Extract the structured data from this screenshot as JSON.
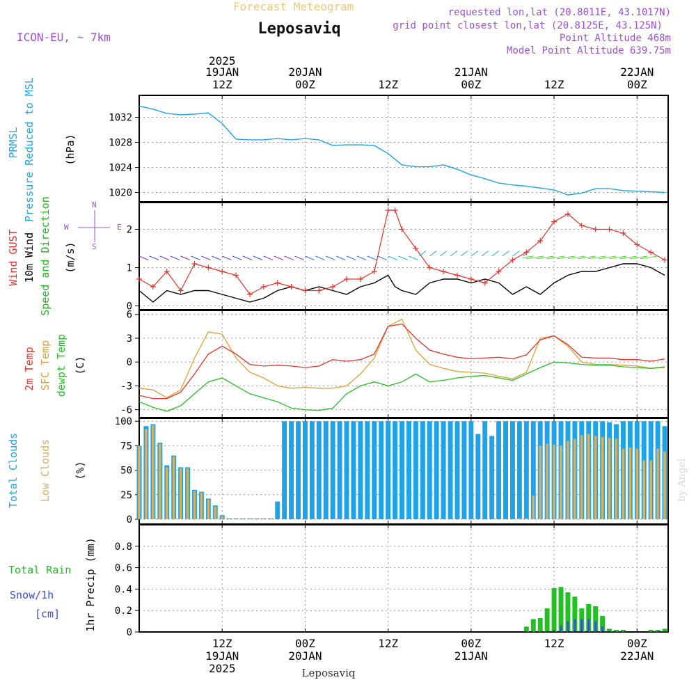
{
  "header": {
    "model": "ICON-EU, ~ 7km",
    "subtitle": "Forecast Meteogram",
    "title": "Leposaviq",
    "requested": "requested lon,lat (20.8011E, 43.1017N)",
    "grid_point": "grid point closest lon,lat (20.8125E, 43.125N)",
    "point_altitude": "Point Altitude 468m",
    "model_altitude": "Model Point Altitude 639.75m",
    "footer_place": "Leposaviq",
    "watermark": "by Angel"
  },
  "time_axis": {
    "top_labels": [
      {
        "l1": "2025",
        "l2": "19JAN",
        "l3": "12Z"
      },
      {
        "l1": "",
        "l2": "20JAN",
        "l3": "00Z"
      },
      {
        "l1": "",
        "l2": "",
        "l3": "12Z"
      },
      {
        "l1": "",
        "l2": "21JAN",
        "l3": "00Z"
      },
      {
        "l1": "",
        "l2": "",
        "l3": "12Z"
      },
      {
        "l1": "",
        "l2": "22JAN",
        "l3": "00Z"
      }
    ],
    "bottom_labels": [
      {
        "l1": "12Z",
        "l2": "19JAN",
        "l3": "2025"
      },
      {
        "l1": "00Z",
        "l2": "20JAN",
        "l3": ""
      },
      {
        "l1": "12Z",
        "l2": "",
        "l3": ""
      },
      {
        "l1": "00Z",
        "l2": "21JAN",
        "l3": ""
      },
      {
        "l1": "12Z",
        "l2": "",
        "l3": ""
      },
      {
        "l1": "00Z",
        "l2": "22JAN",
        "l3": ""
      }
    ],
    "tick_hours": [
      12,
      24,
      36,
      48,
      60,
      72
    ]
  },
  "panels": {
    "pressure": {
      "label_line1": "PRMSL",
      "label_line2": "Pressure Reduced to MSL",
      "unit": "(hPa)",
      "color": "#1fa3e8",
      "yticks": [
        1020,
        1024,
        1028,
        1032
      ]
    },
    "wind": {
      "gust_label": "Wind GUST",
      "wind_label": "10m Wind",
      "dir_label": "Speed and Direction",
      "unit": "(m/s)",
      "compass_n": "N",
      "compass_s": "S",
      "compass_w": "W",
      "compass_e": "E",
      "gust_color": "#e8302a",
      "wind_color": "#000000",
      "dir_color": "#22b422",
      "yticks": [
        0,
        1,
        2
      ]
    },
    "temperature": {
      "t2m_label": "2m Temp",
      "sfc_label": "SFC Temp",
      "dew_label": "dewpt Temp",
      "unit": "(C)",
      "t2m_color": "#e8302a",
      "sfc_color": "#e0a030",
      "dew_color": "#22c022",
      "yticks": [
        -6,
        -3,
        0,
        3,
        6
      ]
    },
    "clouds": {
      "total_label": "Total Clouds",
      "low_label": "Low Clouds",
      "unit": "(%)",
      "total_color": "#1fa3e8",
      "low_color": "#d8b060",
      "yticks": [
        0,
        25,
        50,
        75,
        100
      ]
    },
    "precip": {
      "rain_label": "Total  Rain",
      "snow_label": "Snow/1h",
      "snow_unit": "[cm]",
      "unit": "1hr Precip (mm)",
      "rain_color": "#22c022",
      "snow_color": "#3a4ae8",
      "yticks": [
        0,
        0.2,
        0.4,
        0.6,
        0.8
      ]
    }
  },
  "chart_data": [
    {
      "type": "line",
      "name": "pressure",
      "x_hours": [
        0,
        2,
        4,
        6,
        8,
        10,
        12,
        14,
        16,
        18,
        20,
        22,
        24,
        26,
        28,
        30,
        32,
        34,
        36,
        38,
        40,
        42,
        44,
        46,
        48,
        50,
        52,
        54,
        56,
        58,
        60,
        62,
        64,
        66,
        68,
        70,
        72,
        74,
        76
      ],
      "y": [
        1033.8,
        1033.3,
        1032.6,
        1032.4,
        1032.5,
        1032.7,
        1031.0,
        1028.5,
        1028.4,
        1028.4,
        1028.6,
        1028.4,
        1028.6,
        1028.4,
        1027.5,
        1027.6,
        1027.6,
        1027.5,
        1026.2,
        1024.4,
        1024.1,
        1024.1,
        1024.4,
        1023.7,
        1022.8,
        1022.2,
        1021.5,
        1021.2,
        1021.0,
        1020.7,
        1020.4,
        1019.6,
        1019.9,
        1020.6,
        1020.6,
        1020.3,
        1020.2,
        1020.1,
        1020.0
      ],
      "ylim": [
        1018.5,
        1035.5
      ]
    },
    {
      "type": "line",
      "name": "wind",
      "x_hours": [
        0,
        2,
        4,
        6,
        8,
        10,
        12,
        14,
        16,
        18,
        20,
        22,
        24,
        26,
        28,
        30,
        32,
        34,
        36,
        37,
        38,
        40,
        42,
        44,
        46,
        48,
        50,
        52,
        54,
        56,
        58,
        60,
        62,
        64,
        66,
        68,
        70,
        72,
        74,
        76
      ],
      "gust": [
        0.7,
        0.5,
        0.9,
        0.4,
        1.1,
        1.0,
        0.9,
        0.8,
        0.3,
        0.5,
        0.6,
        0.5,
        0.4,
        0.4,
        0.5,
        0.7,
        0.7,
        0.9,
        2.5,
        2.5,
        2.0,
        1.5,
        1.0,
        0.9,
        0.8,
        0.7,
        0.6,
        0.9,
        1.2,
        1.4,
        1.7,
        2.2,
        2.4,
        2.1,
        2.0,
        2.0,
        1.9,
        1.6,
        1.4,
        1.2
      ],
      "wind": [
        0.4,
        0.1,
        0.4,
        0.3,
        0.4,
        0.4,
        0.3,
        0.2,
        0.1,
        0.2,
        0.4,
        0.5,
        0.4,
        0.5,
        0.4,
        0.3,
        0.5,
        0.6,
        0.8,
        0.5,
        0.4,
        0.3,
        0.6,
        0.7,
        0.7,
        0.6,
        0.7,
        0.6,
        0.3,
        0.5,
        0.3,
        0.6,
        0.8,
        0.9,
        0.9,
        1.0,
        1.1,
        1.1,
        1.0,
        0.8
      ],
      "ylim": [
        -0.1,
        2.7
      ]
    },
    {
      "type": "line",
      "name": "temperature",
      "x_hours": [
        0,
        2,
        4,
        6,
        8,
        10,
        12,
        14,
        16,
        18,
        20,
        22,
        24,
        26,
        28,
        30,
        32,
        34,
        36,
        38,
        40,
        42,
        44,
        46,
        48,
        50,
        52,
        54,
        56,
        58,
        60,
        62,
        64,
        66,
        68,
        70,
        72,
        74,
        76
      ],
      "t2m": [
        -4.2,
        -4.6,
        -4.6,
        -3.8,
        -1.5,
        1.0,
        2.0,
        1.0,
        -0.3,
        -0.5,
        -0.4,
        -0.5,
        -0.7,
        -0.5,
        0.3,
        0.1,
        0.3,
        1.0,
        4.5,
        4.8,
        3.0,
        1.5,
        1.0,
        0.6,
        0.4,
        0.5,
        0.6,
        0.4,
        0.9,
        2.8,
        3.3,
        2.2,
        0.6,
        0.5,
        0.5,
        0.3,
        0.3,
        0.1,
        0.4
      ],
      "sfc": [
        -3.3,
        -3.5,
        -4.5,
        -3.5,
        0.5,
        3.8,
        3.5,
        0.5,
        -1.3,
        -2.0,
        -3.0,
        -3.3,
        -3.2,
        -3.3,
        -3.3,
        -3.0,
        -1.5,
        0.5,
        4.5,
        5.4,
        1.5,
        -0.3,
        -0.8,
        -1.2,
        -1.3,
        -1.4,
        -1.8,
        -2.1,
        -1.3,
        3.0,
        3.3,
        2.0,
        0.0,
        -0.3,
        -0.3,
        -0.4,
        -0.5,
        -0.8,
        -0.7
      ],
      "dew": [
        -5.0,
        -5.7,
        -6.2,
        -5.5,
        -4.0,
        -2.5,
        -2.0,
        -3.0,
        -4.0,
        -4.5,
        -5.0,
        -5.8,
        -6.0,
        -6.1,
        -5.8,
        -4.0,
        -3.0,
        -2.5,
        -3.0,
        -2.5,
        -1.5,
        -2.5,
        -2.3,
        -2.0,
        -1.8,
        -1.7,
        -2.0,
        -2.3,
        -1.5,
        -0.7,
        0.0,
        -0.1,
        -0.3,
        -0.4,
        -0.4,
        -0.6,
        -0.7,
        -0.8,
        -0.6
      ],
      "ylim": [
        -7,
        6.5
      ]
    },
    {
      "type": "bar",
      "name": "clouds",
      "x_hours": [
        0,
        1,
        2,
        3,
        4,
        5,
        6,
        7,
        8,
        9,
        10,
        11,
        12,
        13,
        14,
        15,
        16,
        17,
        18,
        19,
        20,
        21,
        22,
        23,
        24,
        25,
        26,
        27,
        28,
        29,
        30,
        31,
        32,
        33,
        34,
        35,
        36,
        37,
        38,
        39,
        40,
        41,
        42,
        43,
        44,
        45,
        46,
        47,
        48,
        49,
        50,
        51,
        52,
        53,
        54,
        55,
        56,
        57,
        58,
        59,
        60,
        61,
        62,
        63,
        64,
        65,
        66,
        67,
        68,
        69,
        70,
        71,
        72,
        73,
        74,
        75,
        76
      ],
      "total": [
        75,
        95,
        97,
        78,
        55,
        65,
        53,
        53,
        30,
        28,
        21,
        14,
        4,
        1,
        1,
        1,
        1,
        1,
        1,
        1,
        18,
        100,
        100,
        100,
        100,
        100,
        100,
        100,
        100,
        100,
        100,
        100,
        100,
        100,
        100,
        100,
        100,
        100,
        100,
        100,
        100,
        100,
        100,
        100,
        100,
        100,
        100,
        100,
        100,
        87,
        100,
        85,
        100,
        100,
        100,
        100,
        100,
        100,
        100,
        100,
        100,
        100,
        100,
        100,
        100,
        100,
        100,
        100,
        99,
        97,
        100,
        100,
        100,
        100,
        100,
        100,
        95
      ],
      "low": [
        75,
        92,
        96,
        77,
        53,
        64,
        52,
        52,
        29,
        27,
        20,
        13,
        3,
        1,
        1,
        1,
        1,
        1,
        1,
        1,
        0,
        0,
        0,
        0,
        0,
        0,
        0,
        0,
        0,
        0,
        0,
        0,
        0,
        0,
        0,
        0,
        0,
        0,
        0,
        0,
        0,
        0,
        0,
        0,
        0,
        0,
        0,
        0,
        0,
        0,
        0,
        0,
        0,
        0,
        0,
        1,
        1,
        24,
        75,
        77,
        76,
        75,
        80,
        82,
        86,
        87,
        85,
        84,
        83,
        82,
        72,
        73,
        72,
        60,
        60,
        72,
        69
      ],
      "ylim": [
        -5,
        103
      ]
    },
    {
      "type": "bar",
      "name": "precip",
      "x_hours": [
        56,
        57,
        58,
        59,
        60,
        61,
        62,
        63,
        64,
        65,
        66,
        67,
        68,
        69,
        70,
        74,
        75,
        76
      ],
      "rain": [
        0.05,
        0.12,
        0.13,
        0.22,
        0.41,
        0.42,
        0.37,
        0.33,
        0.22,
        0.26,
        0.24,
        0.15,
        0.03,
        0.02,
        0.02,
        0.02,
        0.02,
        0.03
      ],
      "snow": [
        0.0,
        0.0,
        0.0,
        0.0,
        0.02,
        0.06,
        0.1,
        0.12,
        0.12,
        0.12,
        0.1,
        0.05,
        0.01,
        0.0,
        0.0,
        0.0,
        0.0,
        0.0
      ],
      "ylim": [
        0,
        1.0
      ]
    }
  ]
}
